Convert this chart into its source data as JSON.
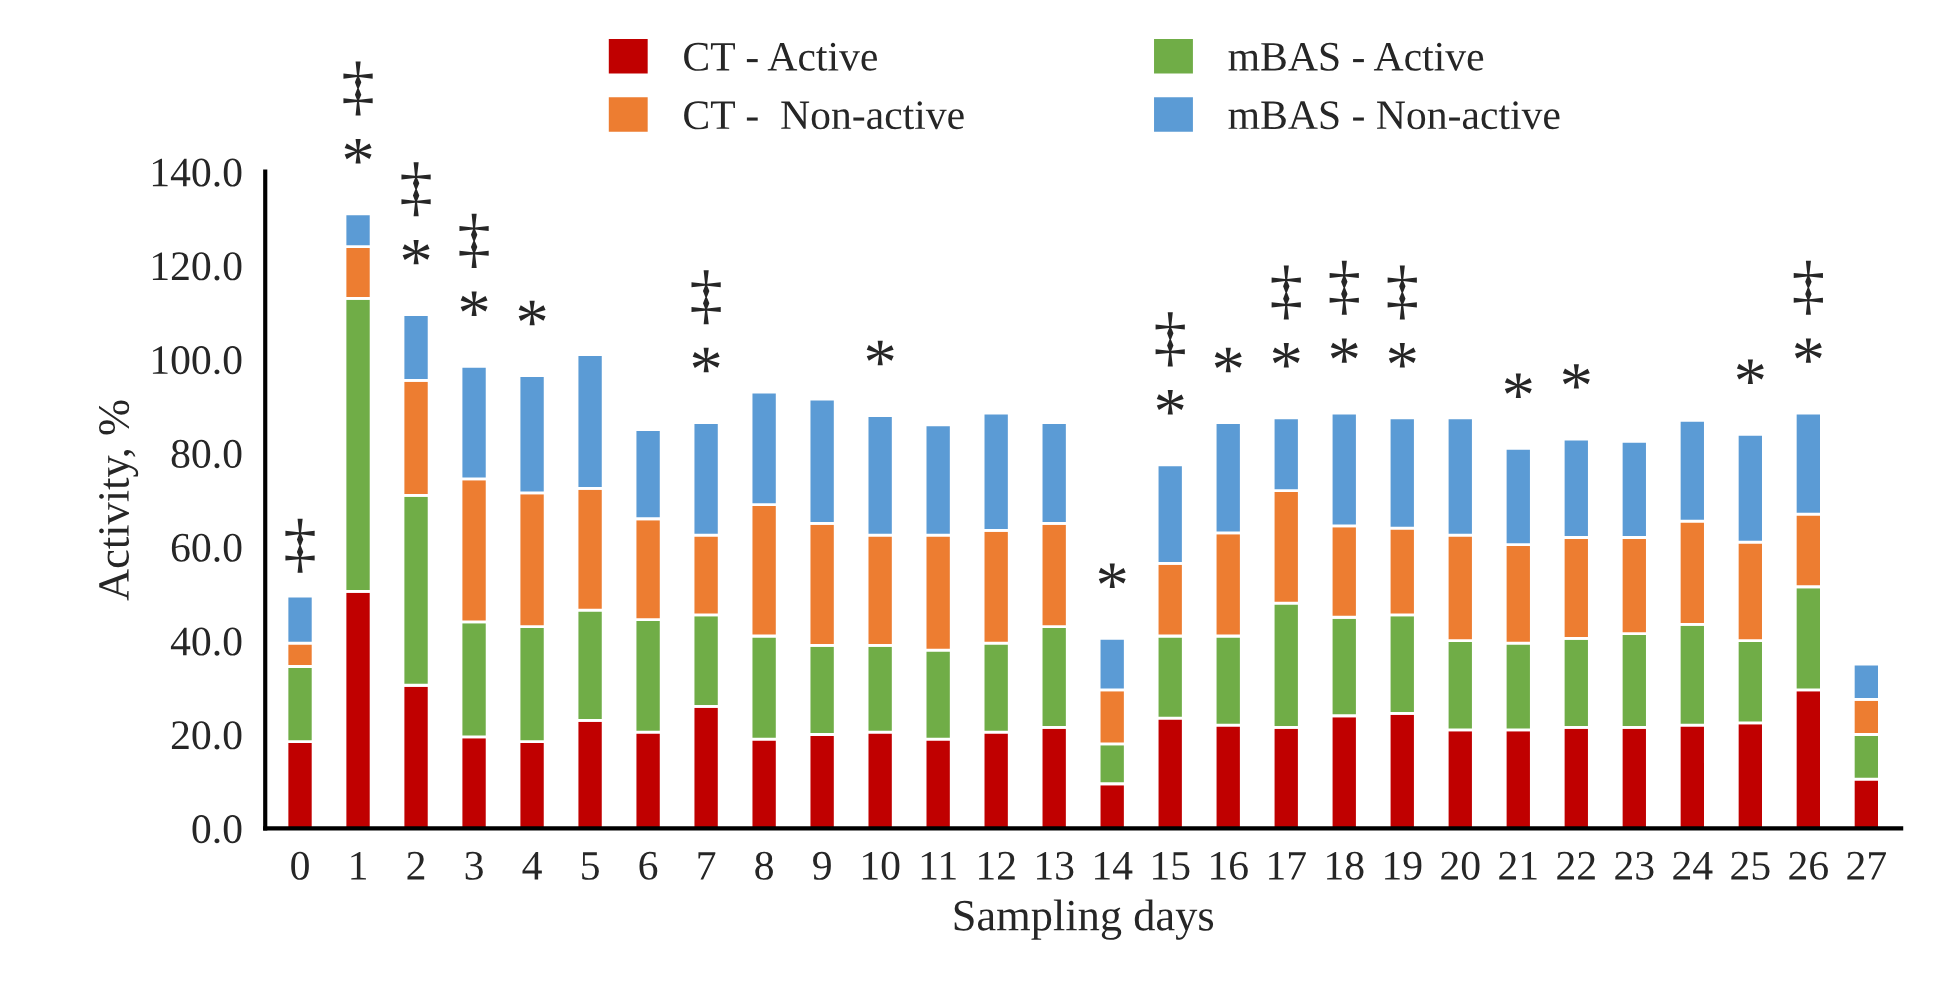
{
  "chart_data": {
    "type": "bar",
    "stacked": true,
    "xlabel": "Sampling days",
    "ylabel": "Activity, %",
    "categories": [
      "0",
      "1",
      "2",
      "3",
      "4",
      "5",
      "6",
      "7",
      "8",
      "9",
      "10",
      "11",
      "12",
      "13",
      "14",
      "15",
      "16",
      "17",
      "18",
      "19",
      "20",
      "21",
      "22",
      "23",
      "24",
      "25",
      "26",
      "27"
    ],
    "series": [
      {
        "name": "CT - Active",
        "color": "#c00000",
        "values": [
          18.5,
          50.5,
          30.5,
          19.5,
          18.5,
          23,
          20.5,
          26,
          19,
          20,
          20.5,
          19,
          20.5,
          21.5,
          9.5,
          23.5,
          22,
          21.5,
          24,
          24.5,
          21,
          21,
          21.5,
          21.5,
          22,
          22.5,
          29.5,
          10.5
        ]
      },
      {
        "name": "mBAS - Active",
        "color": "#70ad47",
        "values": [
          16,
          62.5,
          40.5,
          24.5,
          24.5,
          23.5,
          24,
          19.5,
          22,
          19,
          18.5,
          19,
          19,
          21.5,
          8.5,
          17.5,
          19,
          26.5,
          21,
          21,
          19,
          18.5,
          19,
          20,
          21.5,
          17.5,
          22,
          9.5
        ]
      },
      {
        "name": "CT -  Non-active",
        "color": "#ed7d31",
        "values": [
          5,
          11,
          24.5,
          30.5,
          28.5,
          26,
          21.5,
          17,
          28,
          26,
          23.5,
          24.5,
          24,
          22,
          11.5,
          15.5,
          22,
          24,
          19.5,
          18.5,
          22.5,
          21,
          21.5,
          20.5,
          22,
          21,
          15.5,
          7.5
        ]
      },
      {
        "name": "mBAS - Non-active",
        "color": "#5b9bd5",
        "values": [
          10,
          7,
          14,
          24,
          25,
          28.5,
          19,
          24,
          24,
          26.5,
          25.5,
          23.5,
          25,
          21.5,
          11,
          21,
          23.5,
          15.5,
          24,
          23.5,
          25,
          20.5,
          21,
          20.5,
          21.5,
          23,
          21.5,
          7.5
        ]
      }
    ],
    "ylim": [
      0,
      140
    ],
    "yticks": [
      {
        "value": 0,
        "label": "0.0"
      },
      {
        "value": 20,
        "label": "20.0"
      },
      {
        "value": 40,
        "label": "40.0"
      },
      {
        "value": 60,
        "label": "60.0"
      },
      {
        "value": 80,
        "label": "80.0"
      },
      {
        "value": 100,
        "label": "100.0"
      },
      {
        "value": 120,
        "label": "120.0"
      },
      {
        "value": 140,
        "label": "140.0"
      }
    ],
    "grid": false,
    "legend": "top",
    "annotations": [
      {
        "text": "‡",
        "x": "0",
        "y": 49.5
      },
      {
        "text": "*",
        "x": "1",
        "y": 131
      },
      {
        "text": "‡",
        "x": "1",
        "y": 131
      },
      {
        "text": "*",
        "x": "2",
        "y": 109.5
      },
      {
        "text": "‡",
        "x": "2",
        "y": 109.5
      },
      {
        "text": "*",
        "x": "3",
        "y": 98.5
      },
      {
        "text": "‡",
        "x": "3",
        "y": 98.5
      },
      {
        "text": "*",
        "x": "4",
        "y": 96.5
      },
      {
        "text": "*",
        "x": "7",
        "y": 86.5
      },
      {
        "text": "‡",
        "x": "7",
        "y": 86.5
      },
      {
        "text": "*",
        "x": "10",
        "y": 88
      },
      {
        "text": "*",
        "x": "14",
        "y": 40.5
      },
      {
        "text": "*",
        "x": "15",
        "y": 77.5
      },
      {
        "text": "‡",
        "x": "15",
        "y": 77.5
      },
      {
        "text": "*",
        "x": "16",
        "y": 86.5
      },
      {
        "text": "*",
        "x": "17",
        "y": 87.5
      },
      {
        "text": "‡",
        "x": "17",
        "y": 87.5
      },
      {
        "text": "*",
        "x": "18",
        "y": 88.5
      },
      {
        "text": "‡",
        "x": "18",
        "y": 88.5
      },
      {
        "text": "*",
        "x": "19",
        "y": 87.5
      },
      {
        "text": "‡",
        "x": "19",
        "y": 87.5
      },
      {
        "text": "*",
        "x": "21",
        "y": 81
      },
      {
        "text": "*",
        "x": "22",
        "y": 83
      },
      {
        "text": "*",
        "x": "25",
        "y": 84
      },
      {
        "text": "*",
        "x": "26",
        "y": 88.5
      },
      {
        "text": "‡",
        "x": "26",
        "y": 88.5
      }
    ]
  }
}
